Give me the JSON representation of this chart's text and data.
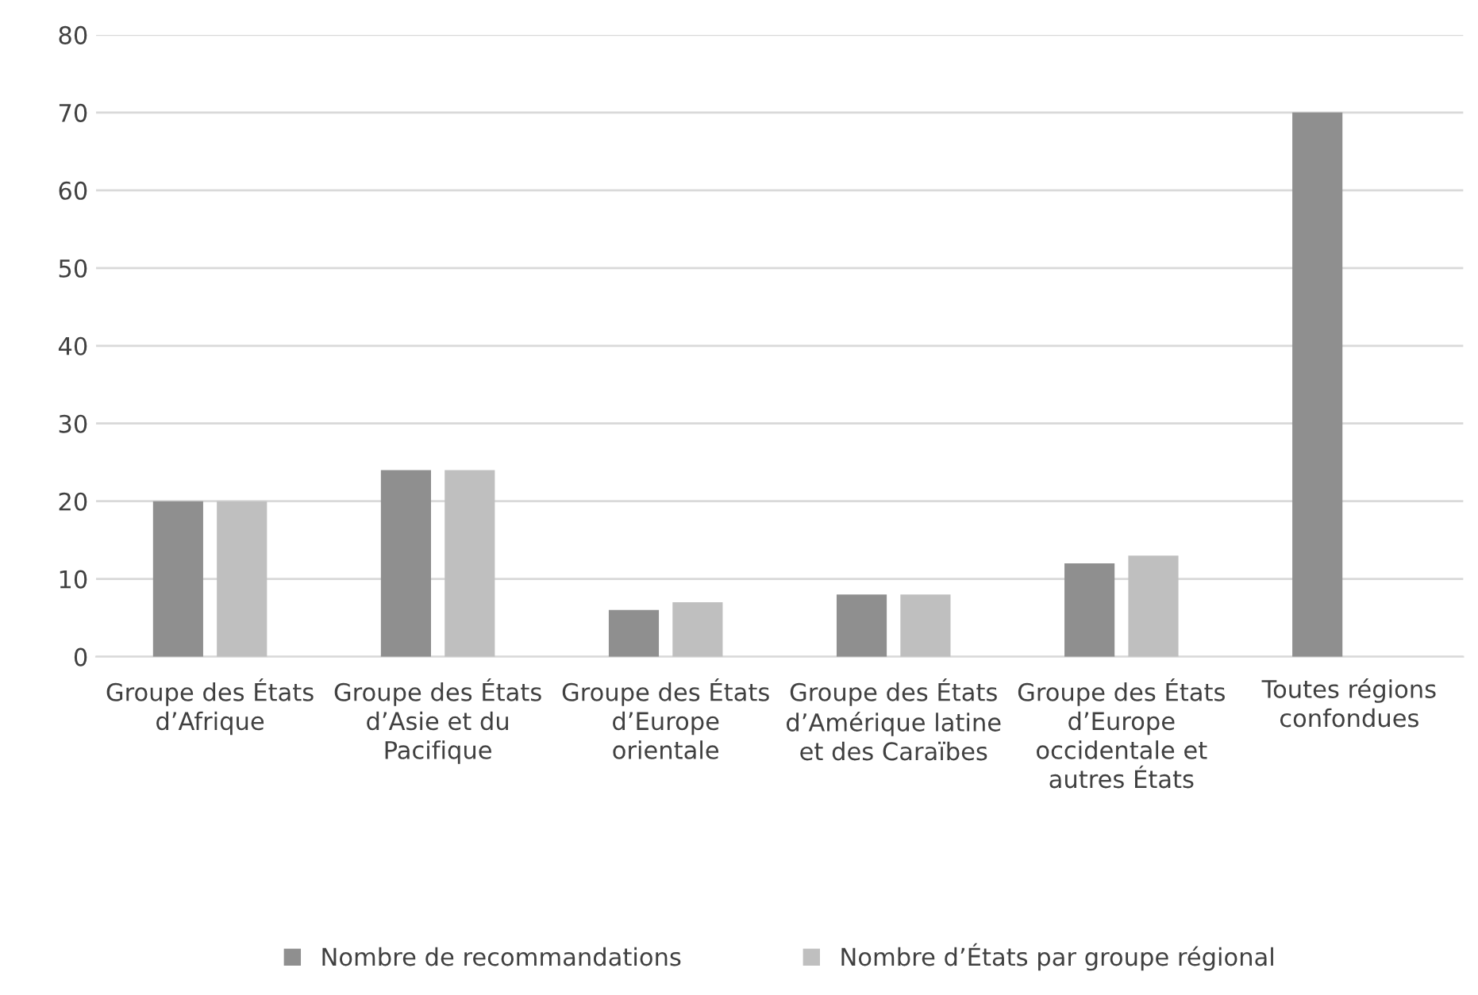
{
  "chart_data": {
    "type": "bar",
    "categories": [
      "Groupe des États d’Afrique",
      "Groupe des États d’Asie et du Pacifique",
      "Groupe des États d’Europe orientale",
      "Groupe des États d’Amérique latine et des Caraïbes",
      "Groupe des États d’Europe occidentale et autres États",
      "Toutes régions confondues"
    ],
    "series": [
      {
        "name": "Nombre de recommandations",
        "color": "#8f8f8f",
        "values": [
          20,
          24,
          6,
          8,
          12,
          70
        ]
      },
      {
        "name": "Nombre d’États par groupe régional",
        "color": "#bfbfbf",
        "values": [
          20,
          24,
          7,
          8,
          13,
          null
        ]
      }
    ],
    "ylim": [
      0,
      80
    ],
    "yticks": [
      0,
      10,
      20,
      30,
      40,
      50,
      60,
      70,
      80
    ],
    "grid": "y",
    "legend": "bottom"
  }
}
